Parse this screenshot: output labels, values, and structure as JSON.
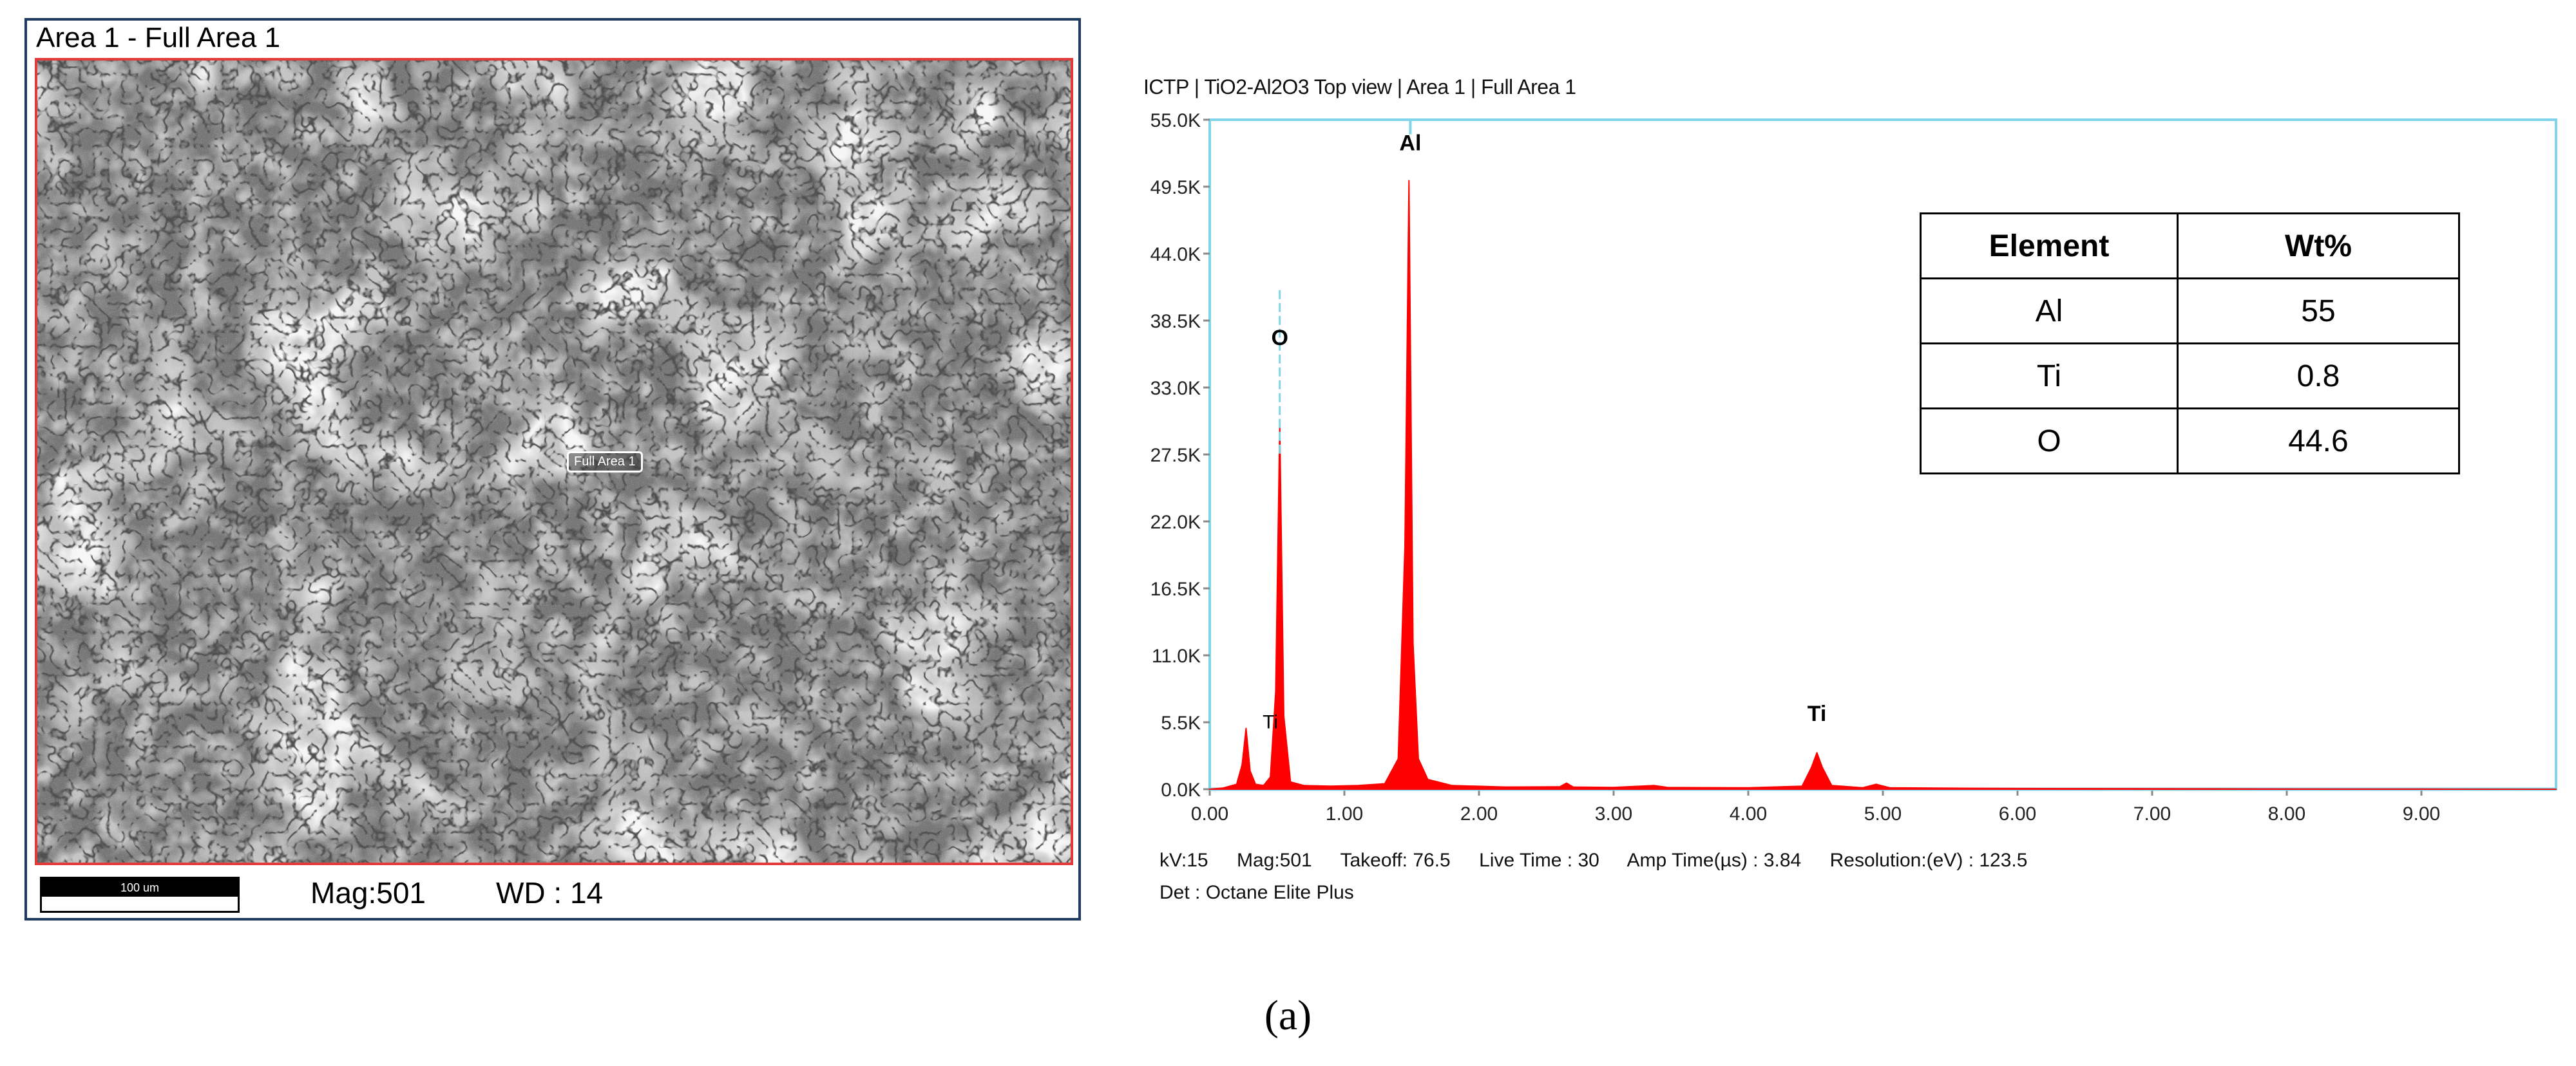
{
  "sem": {
    "title": "Area 1 - Full Area 1",
    "area_label": "Full Area 1",
    "scale_label": "100 um",
    "mag": "Mag:501",
    "wd": "WD : 14"
  },
  "eds": {
    "header": "ICTP | TiO2-Al2O3 Top view | Area 1 | Full Area 1",
    "footer": {
      "kv": "kV:15",
      "mag": "Mag:501",
      "takeoff": "Takeoff: 76.5",
      "live_time": "Live Time : 30",
      "amp_time": "Amp Time(µs) : 3.84",
      "resolution": "Resolution:(eV) : 123.5",
      "detector": "Det : Octane Elite Plus"
    }
  },
  "chart_data": {
    "type": "area",
    "title": "",
    "xlabel": "",
    "ylabel": "",
    "xlim": [
      0,
      10.0
    ],
    "ylim": [
      0,
      55000
    ],
    "x_ticks": [
      "0.00",
      "1.00",
      "2.00",
      "3.00",
      "4.00",
      "5.00",
      "6.00",
      "7.00",
      "8.00",
      "9.00"
    ],
    "y_ticks": [
      "0.0K",
      "5.5K",
      "11.0K",
      "16.5K",
      "22.0K",
      "27.5K",
      "33.0K",
      "38.5K",
      "44.0K",
      "49.5K",
      "55.0K"
    ],
    "fill_color": "#ff0000",
    "frame_color": "#7fd4ea",
    "series": [
      {
        "x": [
          0.0,
          0.1,
          0.2,
          0.24,
          0.27,
          0.3,
          0.34,
          0.4,
          0.45,
          0.49,
          0.52,
          0.55,
          0.6,
          0.7,
          0.9,
          1.1,
          1.3,
          1.4,
          1.45,
          1.48,
          1.51,
          1.55,
          1.62,
          1.8,
          2.2,
          2.6,
          2.65,
          2.7,
          3.0,
          3.3,
          3.4,
          3.6,
          4.0,
          4.4,
          4.47,
          4.51,
          4.55,
          4.62,
          4.85,
          4.95,
          5.05,
          5.4,
          6.0,
          7.0,
          8.0,
          9.0,
          10.0
        ],
        "y": [
          0,
          100,
          400,
          2000,
          5000,
          1500,
          400,
          300,
          1000,
          8000,
          30000,
          6000,
          600,
          300,
          250,
          300,
          450,
          2500,
          20000,
          50000,
          12000,
          2500,
          800,
          300,
          180,
          200,
          500,
          180,
          150,
          300,
          150,
          130,
          120,
          250,
          1800,
          3000,
          1800,
          300,
          120,
          400,
          120,
          90,
          60,
          40,
          20,
          10,
          0
        ]
      }
    ],
    "peak_labels": [
      {
        "label": "O",
        "x": 0.52,
        "y": 36500
      },
      {
        "label": "Al",
        "x": 1.49,
        "y": 52500
      },
      {
        "label": "Ti",
        "x": 4.51,
        "y": 5600
      },
      {
        "label": "Ti",
        "x": 0.45,
        "y": 5000
      }
    ]
  },
  "composition_table": {
    "headers": [
      "Element",
      "Wt%"
    ],
    "rows": [
      [
        "Al",
        "55"
      ],
      [
        "Ti",
        "0.8"
      ],
      [
        "O",
        "44.6"
      ]
    ]
  },
  "caption": "(a)"
}
